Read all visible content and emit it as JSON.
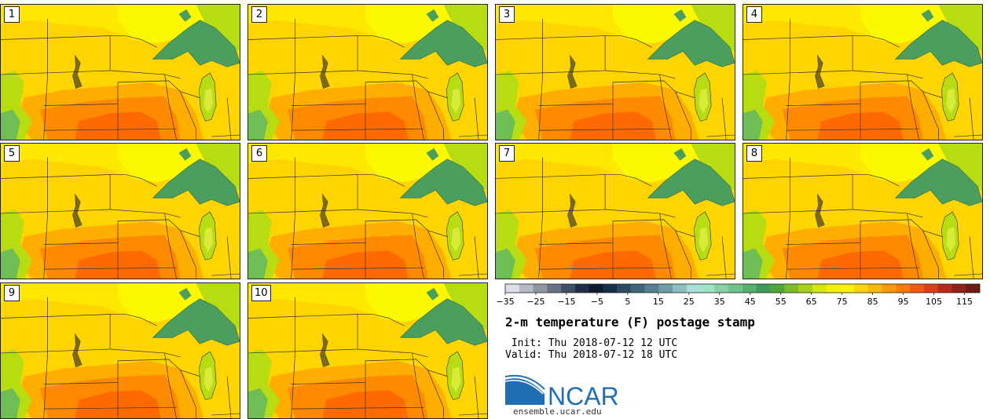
{
  "panels": [
    {
      "label": "1"
    },
    {
      "label": "2"
    },
    {
      "label": "3"
    },
    {
      "label": "4"
    },
    {
      "label": "5"
    },
    {
      "label": "6"
    },
    {
      "label": "7"
    },
    {
      "label": "8"
    },
    {
      "label": "9"
    },
    {
      "label": "10"
    }
  ],
  "colorbar": {
    "ticks": [
      "−35",
      "−25",
      "−15",
      "−5",
      "5",
      "15",
      "25",
      "35",
      "45",
      "55",
      "65",
      "75",
      "85",
      "95",
      "105",
      "115"
    ],
    "colors": [
      "#dcdfe5",
      "#b5bac4",
      "#8e96a4",
      "#677385",
      "#3f4f66",
      "#1f2f47",
      "#0d1b30",
      "#17304a",
      "#2c4a62",
      "#3f6478",
      "#568090",
      "#6e9ea8",
      "#8cbfc1",
      "#a6e0d6",
      "#9fe3c6",
      "#85d3a5",
      "#6cc38b",
      "#52b070",
      "#3f9a55",
      "#4fa63a",
      "#7cbc28",
      "#a8d116",
      "#d6e60a",
      "#f4f000",
      "#fff200",
      "#ffd500",
      "#ffb800",
      "#ff9a00",
      "#ff7a00",
      "#f15a0d",
      "#d8401a",
      "#b82a1d",
      "#92201a",
      "#6e1a14"
    ]
  },
  "title": "2-m temperature (F) postage stamp",
  "init_line": " Init: Thu 2018-07-12 12 UTC",
  "valid_line": "Valid: Thu 2018-07-12 18 UTC",
  "logo_text": "NCAR",
  "site": "ensemble.ucar.edu",
  "map_colors": {
    "base": "#ffd400",
    "light": "#ffe800",
    "yellow": "#fbf800",
    "orange": "#ffae00",
    "deep_orange": "#ff8a00",
    "hot": "#ff6a00",
    "green_light": "#b8dc12",
    "green": "#6fbe55",
    "lake": "#4c9e5e",
    "lake_dark": "#357a4a",
    "border": "#333333"
  }
}
